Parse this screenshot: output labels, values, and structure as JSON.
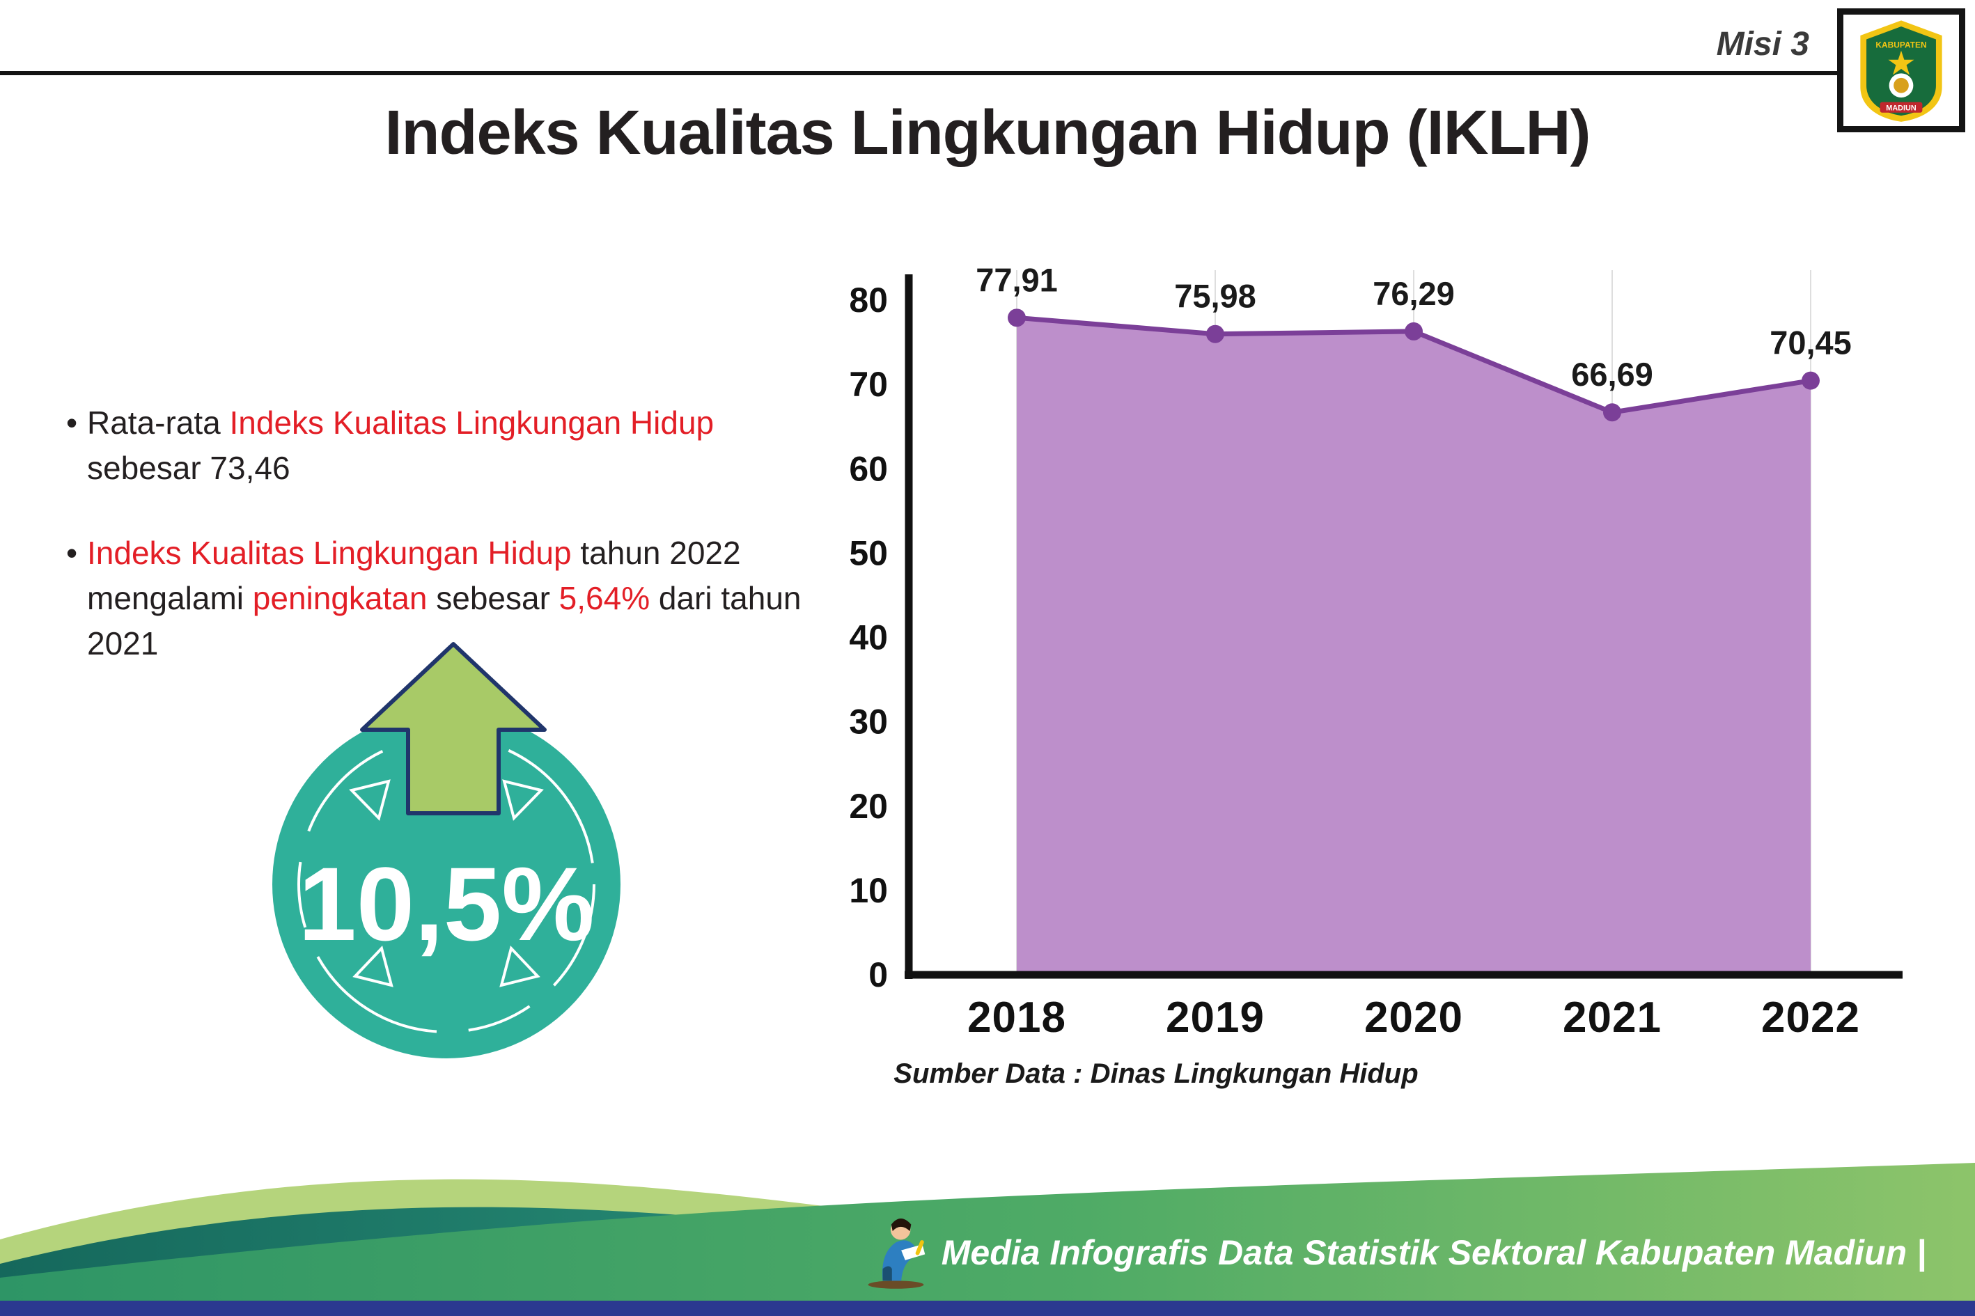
{
  "header": {
    "misi_label": "Misi 3",
    "title": "Indeks Kualitas Lingkungan Hidup (IKLH)",
    "logo": {
      "name": "Kabupaten Madiun",
      "top_text": "KABUPATEN",
      "bottom_text": "MADIUN"
    }
  },
  "bullets": [
    {
      "segments": [
        {
          "text": "Rata-rata ",
          "style": "dark"
        },
        {
          "text": "Indeks Kualitas Lingkungan Hidup",
          "style": "red"
        },
        {
          "text": " sebesar 73,46",
          "style": "dark"
        }
      ]
    },
    {
      "segments": [
        {
          "text": "Indeks Kualitas Lingkungan Hidup",
          "style": "red"
        },
        {
          "text": " tahun 2022 mengalami ",
          "style": "dark"
        },
        {
          "text": "peningkatan",
          "style": "red"
        },
        {
          "text": " sebesar ",
          "style": "dark"
        },
        {
          "text": "5,64%",
          "style": "red"
        },
        {
          "text": " dari tahun 2021",
          "style": "dark"
        }
      ]
    }
  ],
  "badge": {
    "value": "10,5%",
    "circle_color": "#2fb09a",
    "arrow_color": "#a8ca67",
    "arrow_outline_color": "#20356b"
  },
  "chart_data": {
    "type": "area",
    "categories": [
      "2018",
      "2019",
      "2020",
      "2021",
      "2022"
    ],
    "values": [
      77.91,
      75.98,
      76.29,
      66.69,
      70.45
    ],
    "value_labels": [
      "77,91",
      "75,98",
      "76,29",
      "66,69",
      "70,45"
    ],
    "series_name": "IKLH",
    "ylim": [
      0,
      80
    ],
    "yticks": [
      0,
      10,
      20,
      30,
      40,
      50,
      60,
      70,
      80
    ],
    "grid": "vertical",
    "legend": "none",
    "fill_color": "#bd8fcb",
    "line_color": "#7b3f98",
    "source": "Sumber Data : Dinas Lingkungan Hidup"
  },
  "footer": {
    "credit": "Media Infografis Data Statistik Sektoral Kabupaten Madiun |"
  }
}
